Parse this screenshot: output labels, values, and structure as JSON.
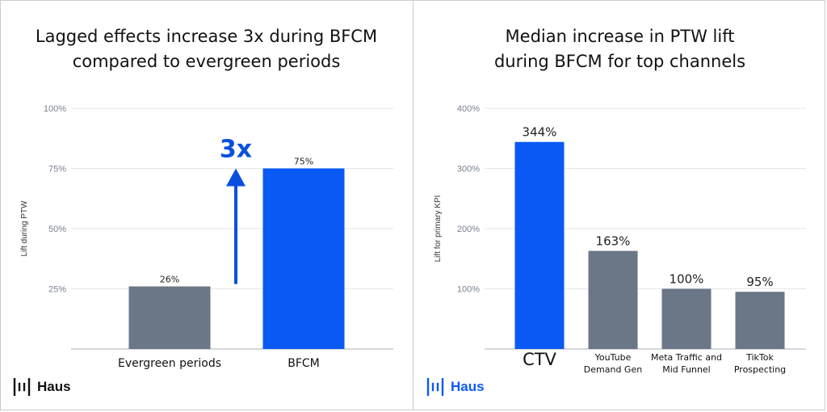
{
  "colors": {
    "gray_bar": "#6b7686",
    "blue_bar": "#0a59f5",
    "blue_text": "#0a4fe0",
    "grid": "#e3e6ea",
    "axis_text": "#7a8290"
  },
  "chart_data": [
    {
      "type": "bar",
      "title": "Lagged effects increase 3x during BFCM compared to evergreen periods",
      "title_lines": [
        "Lagged effects increase 3x during BFCM",
        "compared to evergreen periods"
      ],
      "categories": [
        "Evergreen periods",
        "BFCM"
      ],
      "values": [
        26,
        75
      ],
      "value_labels": [
        "26%",
        "75%"
      ],
      "bar_colors": [
        "#6b7686",
        "#0a59f5"
      ],
      "xlabel": "",
      "ylabel": "Lift during PTW",
      "ylim": [
        0,
        100
      ],
      "yticks": [
        25,
        50,
        75,
        100
      ],
      "ytick_labels": [
        "25%",
        "50%",
        "75%",
        "100%"
      ],
      "grid": true,
      "annotation": {
        "text": "3x",
        "arrow": "up",
        "color": "#0a4fe0"
      }
    },
    {
      "type": "bar",
      "title": "Median increase in PTW lift during BFCM for top channels",
      "title_lines": [
        "Median increase in PTW lift",
        "during BFCM for top channels"
      ],
      "categories": [
        "CTV",
        "YouTube Demand Gen",
        "Meta Traffic and Mid Funnel",
        "TikTok Prospecting"
      ],
      "category_lines": [
        [
          "CTV"
        ],
        [
          "YouTube",
          "Demand Gen"
        ],
        [
          "Meta Traffic and",
          "Mid Funnel"
        ],
        [
          "TikTok",
          "Prospecting"
        ]
      ],
      "values": [
        344,
        163,
        100,
        95
      ],
      "value_labels": [
        "344%",
        "163%",
        "100%",
        "95%"
      ],
      "bar_colors": [
        "#0a59f5",
        "#6b7686",
        "#6b7686",
        "#6b7686"
      ],
      "xlabel": "",
      "ylabel": "Lift for primary KPI",
      "ylim": [
        0,
        400
      ],
      "yticks": [
        100,
        200,
        300,
        400
      ],
      "ytick_labels": [
        "100%",
        "200%",
        "300%",
        "400%"
      ],
      "grid": true
    }
  ],
  "logos": [
    {
      "text": "Haus",
      "icon": "haus-logo-icon",
      "color": "#111111"
    },
    {
      "text": "Haus",
      "icon": "haus-logo-icon",
      "color": "#0a59f5"
    }
  ]
}
